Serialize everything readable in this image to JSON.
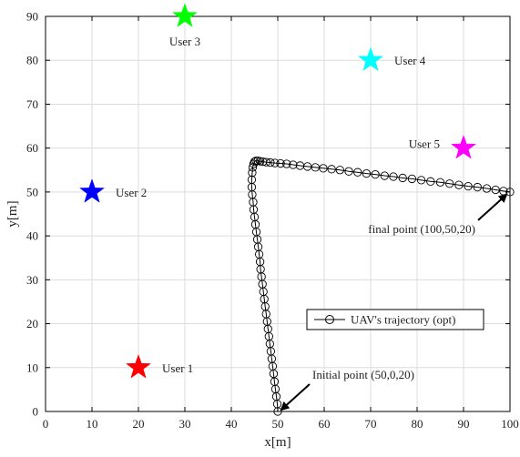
{
  "chart_data": {
    "type": "scatter",
    "xlabel": "x[m]",
    "ylabel": "y[m]",
    "xlim": [
      0,
      100
    ],
    "ylim": [
      0,
      90
    ],
    "xticks": [
      0,
      10,
      20,
      30,
      40,
      50,
      60,
      70,
      80,
      90,
      100
    ],
    "yticks": [
      0,
      10,
      20,
      30,
      40,
      50,
      60,
      70,
      80,
      90
    ],
    "grid": true,
    "legend": {
      "placement": "lower-right",
      "entries": [
        "UAV's trajectory (opt)"
      ]
    },
    "users": [
      {
        "label": "User 1",
        "x": 20,
        "y": 10,
        "color": "#ff0000"
      },
      {
        "label": "User 2",
        "x": 10,
        "y": 50,
        "color": "#0000ff"
      },
      {
        "label": "User 3",
        "x": 30,
        "y": 90,
        "color": "#00ff00"
      },
      {
        "label": "User 4",
        "x": 70,
        "y": 80,
        "color": "#00ffff"
      },
      {
        "label": "User 5",
        "x": 90,
        "y": 60,
        "color": "#ff00ff"
      }
    ],
    "series": [
      {
        "name": "UAV's trajectory (opt)",
        "marker": "open-circle",
        "color": "#000000",
        "x": [
          50.0,
          49.9,
          49.7,
          49.5,
          49.3,
          49.1,
          48.9,
          48.7,
          48.5,
          48.3,
          48.1,
          47.9,
          47.7,
          47.5,
          47.3,
          47.1,
          46.9,
          46.7,
          46.5,
          46.3,
          46.2,
          46.0,
          45.8,
          45.6,
          45.4,
          45.2,
          45.0,
          44.8,
          44.7,
          44.5,
          44.4,
          44.4,
          44.5,
          44.6,
          44.8,
          45.0,
          45.3,
          45.7,
          46.2,
          46.8,
          47.5,
          48.4,
          49.4,
          50.6,
          51.9,
          53.3,
          54.8,
          56.4,
          58.1,
          59.8,
          61.6,
          63.4,
          65.3,
          67.2,
          69.1,
          71.0,
          73.0,
          74.9,
          76.9,
          78.9,
          80.9,
          82.9,
          85.0,
          87.0,
          89.0,
          91.0,
          93.0,
          95.0,
          96.9,
          98.6,
          100.0
        ],
        "y": [
          0.0,
          1.7,
          3.4,
          5.1,
          6.8,
          8.6,
          10.3,
          12.0,
          13.7,
          15.4,
          17.1,
          18.8,
          20.5,
          22.2,
          23.9,
          25.6,
          27.3,
          29.0,
          30.7,
          32.4,
          34.1,
          35.8,
          37.5,
          39.2,
          40.9,
          42.6,
          44.3,
          46.0,
          47.7,
          49.4,
          51.1,
          52.8,
          54.4,
          55.6,
          56.4,
          56.9,
          57.1,
          57.1,
          57.0,
          56.9,
          56.8,
          56.7,
          56.6,
          56.5,
          56.4,
          56.2,
          56.0,
          55.8,
          55.6,
          55.4,
          55.2,
          55.0,
          54.7,
          54.5,
          54.2,
          54.0,
          53.7,
          53.5,
          53.2,
          53.0,
          52.7,
          52.4,
          52.2,
          51.9,
          51.6,
          51.3,
          51.1,
          50.8,
          50.5,
          50.2,
          50.0
        ]
      }
    ],
    "annotations": [
      {
        "text": "Initial point (50,0,20)",
        "x": 50,
        "y": 0
      },
      {
        "text": "final point (100,50,20)",
        "x": 100,
        "y": 50
      }
    ]
  }
}
